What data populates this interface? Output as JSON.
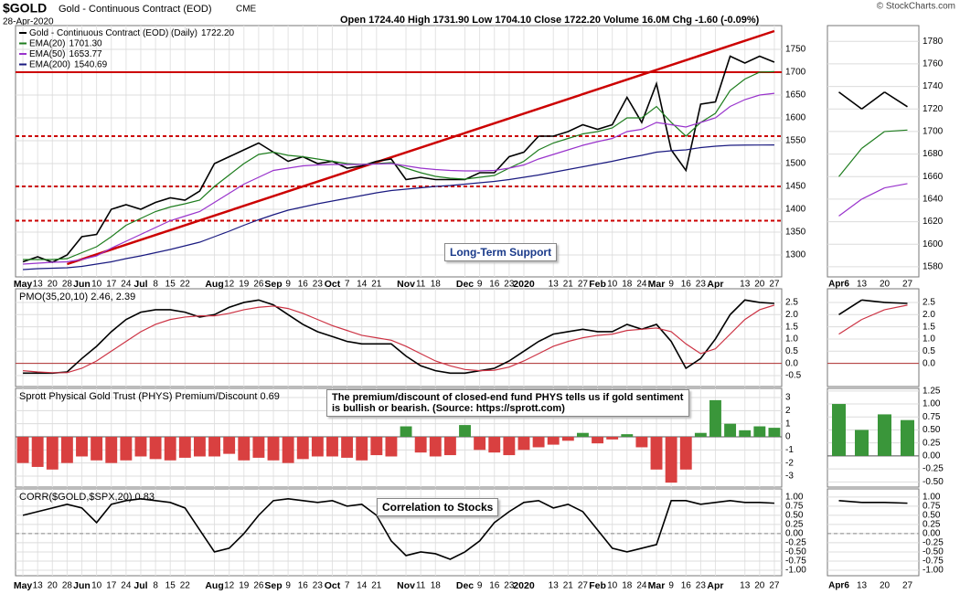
{
  "header": {
    "symbol": "$GOLD",
    "name": "Gold - Continuous Contract (EOD)",
    "exchange": "CME",
    "date": "28-Apr-2020",
    "quote": "Open 1724.40  High 1731.90  Low 1704.10  Close 1722.20  Volume 16.0M  Chg -1.60 (-0.09%)",
    "credit": "© StockCharts.com"
  },
  "chart_data": [
    {
      "type": "line",
      "categories": [
        "May",
        "13",
        "20",
        "28",
        "Jun",
        "10",
        "17",
        "24",
        "Jul",
        "8",
        "15",
        "22",
        null,
        "Aug",
        "12",
        "19",
        "26",
        "Sep",
        "9",
        "16",
        "23",
        "Oct",
        "7",
        "14",
        "21",
        null,
        "Nov",
        "11",
        "18",
        null,
        "Dec",
        "9",
        "16",
        "23",
        "2020",
        null,
        "13",
        "21",
        "27",
        "Feb",
        "10",
        "18",
        "24",
        "Mar",
        "9",
        "16",
        "23",
        "Apr",
        null,
        "13",
        "20",
        "27"
      ],
      "series": [
        {
          "name": "Gold - Continuous Contract (EOD) (Daily)",
          "legend": "1722.20",
          "color": "#000000",
          "values": [
            1285,
            1296,
            1284,
            1300,
            1340,
            1345,
            1400,
            1410,
            1400,
            1415,
            1425,
            1420,
            1440,
            1500,
            1515,
            1530,
            1545,
            1525,
            1505,
            1515,
            1500,
            1505,
            1490,
            1495,
            1505,
            1510,
            1465,
            1470,
            1465,
            1465,
            1465,
            1480,
            1480,
            1515,
            1525,
            1560,
            1560,
            1570,
            1585,
            1575,
            1585,
            1645,
            1590,
            1675,
            1530,
            1485,
            1630,
            1635,
            1735,
            1720,
            1735,
            1722
          ]
        },
        {
          "name": "EMA(20)",
          "legend": "1701.30",
          "color": "#1e7d1e",
          "values": [
            1290,
            1290,
            1290,
            1292,
            1305,
            1318,
            1340,
            1365,
            1380,
            1395,
            1405,
            1412,
            1420,
            1450,
            1475,
            1500,
            1520,
            1525,
            1518,
            1515,
            1510,
            1505,
            1500,
            1498,
            1500,
            1502,
            1490,
            1480,
            1472,
            1468,
            1466,
            1470,
            1474,
            1490,
            1505,
            1530,
            1545,
            1555,
            1565,
            1570,
            1578,
            1600,
            1600,
            1625,
            1590,
            1560,
            1590,
            1610,
            1660,
            1685,
            1700,
            1701.3
          ]
        },
        {
          "name": "EMA(50)",
          "legend": "1653.77",
          "color": "#9933cc",
          "values": [
            1280,
            1282,
            1284,
            1285,
            1290,
            1298,
            1315,
            1330,
            1345,
            1360,
            1375,
            1385,
            1395,
            1415,
            1435,
            1455,
            1470,
            1485,
            1490,
            1495,
            1497,
            1498,
            1498,
            1498,
            1499,
            1500,
            1495,
            1490,
            1487,
            1485,
            1484,
            1484,
            1485,
            1490,
            1497,
            1510,
            1520,
            1530,
            1540,
            1548,
            1555,
            1570,
            1575,
            1590,
            1585,
            1580,
            1590,
            1600,
            1625,
            1640,
            1650,
            1653.77
          ]
        },
        {
          "name": "EMA(200)",
          "legend": "1540.69",
          "color": "#1a1a80",
          "values": [
            1268,
            1270,
            1271,
            1272,
            1275,
            1280,
            1285,
            1292,
            1298,
            1305,
            1312,
            1320,
            1328,
            1340,
            1352,
            1365,
            1377,
            1388,
            1398,
            1405,
            1412,
            1418,
            1424,
            1430,
            1436,
            1441,
            1444,
            1447,
            1450,
            1452,
            1455,
            1458,
            1461,
            1465,
            1470,
            1475,
            1481,
            1487,
            1493,
            1499,
            1505,
            1512,
            1518,
            1525,
            1528,
            1530,
            1535,
            1538,
            1540,
            1540.5,
            1540.6,
            1540.69
          ]
        }
      ],
      "ylim": [
        1252,
        1802
      ],
      "yticks": [
        1300,
        1350,
        1400,
        1450,
        1500,
        1550,
        1600,
        1650,
        1700,
        1750
      ],
      "grid": true,
      "levels": [
        1700,
        1560,
        1450,
        1375
      ],
      "level_color": "#cc0000",
      "trendline": {
        "x": [
          3,
          51
        ],
        "values": [
          1280,
          1790
        ]
      },
      "annotation": "Long-Term Support",
      "inset": {
        "categories": [
          "Apr6",
          "13",
          "20",
          "27"
        ],
        "ylim": [
          1571,
          1794
        ],
        "yticks": [
          1580,
          1600,
          1620,
          1640,
          1660,
          1680,
          1700,
          1720,
          1740,
          1760,
          1780
        ]
      }
    },
    {
      "type": "line",
      "title": "PMO(35,20,10) 2.46, 2.39",
      "series": [
        {
          "name": "PMO",
          "color": "#000000",
          "values": [
            -0.4,
            -0.4,
            -0.4,
            -0.35,
            0.2,
            0.7,
            1.3,
            1.8,
            2.1,
            2.2,
            2.2,
            2.1,
            1.9,
            2.0,
            2.3,
            2.5,
            2.6,
            2.4,
            2.0,
            1.6,
            1.3,
            1.1,
            0.9,
            0.8,
            0.8,
            0.8,
            0.3,
            -0.1,
            -0.3,
            -0.4,
            -0.4,
            -0.3,
            -0.2,
            0.1,
            0.5,
            0.9,
            1.2,
            1.3,
            1.4,
            1.3,
            1.3,
            1.6,
            1.4,
            1.6,
            0.9,
            -0.2,
            0.2,
            1.0,
            2.0,
            2.6,
            2.5,
            2.46
          ]
        },
        {
          "name": "Signal",
          "color": "#cc3344",
          "values": [
            -0.3,
            -0.35,
            -0.38,
            -0.38,
            -0.2,
            0.1,
            0.5,
            0.9,
            1.3,
            1.6,
            1.8,
            1.9,
            1.95,
            1.95,
            2.05,
            2.2,
            2.3,
            2.35,
            2.25,
            2.05,
            1.8,
            1.55,
            1.35,
            1.15,
            1.05,
            0.95,
            0.7,
            0.4,
            0.1,
            -0.1,
            -0.25,
            -0.3,
            -0.28,
            -0.15,
            0.1,
            0.4,
            0.7,
            0.9,
            1.05,
            1.15,
            1.2,
            1.35,
            1.4,
            1.45,
            1.3,
            0.8,
            0.4,
            0.6,
            1.2,
            1.8,
            2.2,
            2.39
          ]
        }
      ],
      "ylim": [
        -0.95,
        3.06
      ],
      "yticks": [
        {
          "value": -0.5,
          "label": "-0.5"
        },
        {
          "value": 0,
          "label": "0.0"
        },
        0.5,
        {
          "value": 1,
          "label": "1.0"
        },
        1.5,
        {
          "value": 2,
          "label": "2.0"
        },
        2.5
      ],
      "zero_line": {
        "color": "#b03030",
        "dashed": false
      },
      "inset": {
        "ylim": [
          -0.95,
          3.06
        ],
        "yticks": [
          {
            "value": 0,
            "label": "0.0"
          },
          0.5,
          {
            "value": 1,
            "label": "1.0"
          },
          1.5,
          {
            "value": 2,
            "label": "2.0"
          },
          2.5
        ]
      }
    },
    {
      "type": "bar",
      "title": "Sprott Physical Gold Trust (PHYS) Premium/Discount 0.69",
      "values": [
        -2.0,
        -2.3,
        -2.5,
        -2.0,
        -1.5,
        -1.8,
        -2.0,
        -1.8,
        -1.5,
        -1.7,
        -1.8,
        -1.6,
        -1.5,
        -1.5,
        -1.3,
        -1.8,
        -1.6,
        -1.8,
        -2.0,
        -1.7,
        -1.5,
        -1.5,
        -1.6,
        -1.8,
        -1.4,
        -1.5,
        0.8,
        -1.2,
        -1.5,
        -1.4,
        0.9,
        -1.0,
        -1.2,
        -1.4,
        -1.0,
        -0.8,
        -0.6,
        -0.3,
        0.3,
        -0.5,
        -0.2,
        0.2,
        -0.8,
        -2.5,
        -3.5,
        -2.5,
        0.3,
        2.8,
        1.0,
        0.5,
        0.8,
        0.69
      ],
      "colors": {
        "positive": "#3a963a",
        "negative": "#d94040"
      },
      "ylim": [
        -3.84,
        3.7
      ],
      "yticks": [
        -3,
        -2,
        -1,
        0,
        1,
        2,
        3
      ],
      "zero_line": {
        "color": "#555555",
        "dashed": false
      },
      "annotation": "The premium/discount of closed-end fund PHYS tells us if gold sentiment is bullish or bearish. (Source: https://sprott.com)",
      "inset": {
        "ylim": [
          -0.6,
          1.3
        ],
        "yticks": [
          {
            "value": -0.5,
            "label": "-0.50"
          },
          -0.25,
          {
            "value": 0,
            "label": "0.00"
          },
          0.25,
          {
            "value": 0.5,
            "label": "0.50"
          },
          0.75,
          {
            "value": 1,
            "label": "1.00"
          },
          1.25
        ]
      }
    },
    {
      "type": "line",
      "title": "CORR($GOLD,$SPX,20) 0.83",
      "series": [
        {
          "name": "CORR",
          "color": "#000000",
          "values": [
            0.5,
            0.6,
            0.7,
            0.8,
            0.7,
            0.3,
            0.8,
            0.9,
            0.95,
            0.9,
            0.85,
            0.7,
            0.1,
            -0.5,
            -0.4,
            0.0,
            0.5,
            0.9,
            0.95,
            0.9,
            0.85,
            0.9,
            0.75,
            0.8,
            0.5,
            -0.2,
            -0.6,
            -0.5,
            -0.55,
            -0.7,
            -0.5,
            -0.2,
            0.3,
            0.6,
            0.85,
            0.9,
            0.7,
            0.8,
            0.6,
            0.1,
            -0.4,
            -0.5,
            -0.4,
            -0.3,
            0.9,
            0.9,
            0.8,
            0.85,
            0.9,
            0.85,
            0.85,
            0.83
          ]
        }
      ],
      "ylim": [
        -1.15,
        1.22
      ],
      "yticks": [
        {
          "value": -1,
          "label": "-1.00"
        },
        -0.75,
        {
          "value": -0.5,
          "label": "-0.50"
        },
        -0.25,
        {
          "value": 0,
          "label": "0.00"
        },
        0.25,
        {
          "value": 0.5,
          "label": "0.50"
        },
        0.75,
        {
          "value": 1,
          "label": "1.00"
        }
      ],
      "zero_line": {
        "color": "#888888",
        "dashed": true
      },
      "annotation": "Correlation to Stocks",
      "inset": {
        "ylim": [
          -1.15,
          1.22
        ],
        "yticks": [
          {
            "value": -1,
            "label": "-1.00"
          },
          -0.75,
          {
            "value": -0.5,
            "label": "-0.50"
          },
          -0.25,
          {
            "value": 0,
            "label": "0.00"
          },
          0.25,
          {
            "value": 0.5,
            "label": "0.50"
          },
          0.75,
          {
            "value": 1,
            "label": "1.00"
          }
        ]
      }
    }
  ]
}
